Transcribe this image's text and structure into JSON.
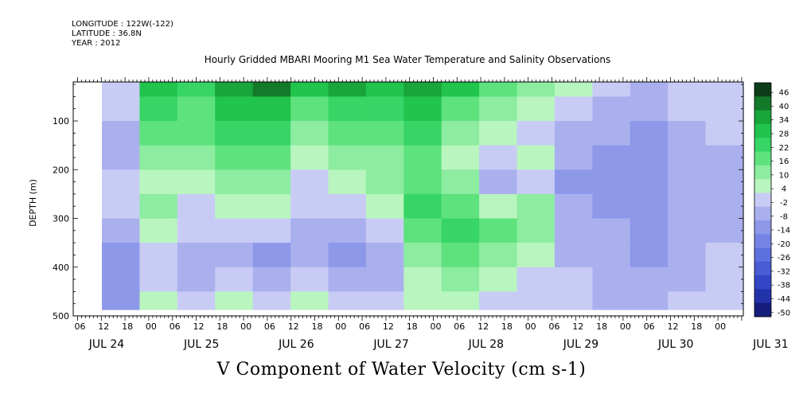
{
  "header": {
    "longitude": "LONGITUDE : 122W(-122)",
    "latitude": "LATITUDE : 36.8N",
    "year": "YEAR : 2012"
  },
  "chart_data": {
    "type": "heatmap",
    "title": "Hourly Gridded MBARI Mooring M1 Sea Water Temperature and Salinity Observations",
    "ylabel": "DEPTH (m)",
    "variable_label": "V Component of Water Velocity (cm s-1)",
    "y_range": [
      500,
      20
    ],
    "y_ticks": [
      100,
      200,
      300,
      400,
      500
    ],
    "hour_tick_labels": [
      "06",
      "12",
      "18",
      "00",
      "06",
      "12",
      "18",
      "00",
      "06",
      "12",
      "18",
      "00",
      "06",
      "12",
      "18",
      "00",
      "06",
      "12",
      "18",
      "00",
      "06",
      "12",
      "18",
      "00",
      "06",
      "12",
      "18",
      "00",
      "06",
      "12",
      "18",
      "00"
    ],
    "date_labels": [
      "JUL 24",
      "JUL 25",
      "JUL 26",
      "JUL 27",
      "JUL 28",
      "JUL 29",
      "JUL 30",
      "JUL 31"
    ],
    "color_levels": [
      46,
      40,
      34,
      28,
      22,
      16,
      10,
      4,
      -2,
      -8,
      -14,
      -20,
      -26,
      -32,
      -38,
      -44,
      -50
    ],
    "colorbar_colors": [
      "#0c3d18",
      "#137a2a",
      "#18a53a",
      "#21c44c",
      "#37d565",
      "#5de27e",
      "#8cec9f",
      "#b9f5bf",
      "#c8ccf5",
      "#aab0ee",
      "#8e98e9",
      "#7584e4",
      "#5d70de",
      "#4a5bd4",
      "#3445c6",
      "#2233aa",
      "#141e7a"
    ],
    "depth_levels": [
      25,
      75,
      125,
      175,
      225,
      275,
      325,
      375,
      425,
      475
    ],
    "time_columns": [
      "Jul 23 12h",
      "Jul 24 00h",
      "Jul 24 12h",
      "Jul 25 00h",
      "Jul 25 12h",
      "Jul 26 00h",
      "Jul 26 12h",
      "Jul 27 00h",
      "Jul 27 12h",
      "Jul 28 00h",
      "Jul 28 12h",
      "Jul 29 00h",
      "Jul 29 12h",
      "Jul 30 00h",
      "Jul 30 12h",
      "Jul 31 00h",
      "Jul 31 12h"
    ],
    "values_by_depth": [
      [
        -8,
        22,
        16,
        28,
        34,
        22,
        28,
        22,
        28,
        22,
        10,
        4,
        -2,
        -8,
        -14,
        -8,
        -8
      ],
      [
        -8,
        16,
        10,
        22,
        22,
        10,
        16,
        16,
        22,
        10,
        4,
        -2,
        -8,
        -14,
        -14,
        -8,
        -8
      ],
      [
        -14,
        10,
        10,
        16,
        16,
        4,
        10,
        10,
        16,
        4,
        -2,
        -8,
        -14,
        -14,
        -20,
        -14,
        -8
      ],
      [
        -14,
        4,
        4,
        10,
        10,
        -2,
        4,
        4,
        10,
        -2,
        -8,
        -2,
        -14,
        -20,
        -20,
        -14,
        -14
      ],
      [
        -8,
        -2,
        -2,
        4,
        4,
        -8,
        -2,
        4,
        10,
        4,
        -14,
        -8,
        -20,
        -20,
        -20,
        -14,
        -14
      ],
      [
        -8,
        4,
        -8,
        -2,
        -2,
        -8,
        -8,
        -2,
        16,
        10,
        -2,
        4,
        -14,
        -20,
        -20,
        -14,
        -14
      ],
      [
        -14,
        -2,
        -8,
        -8,
        -8,
        -14,
        -14,
        -8,
        10,
        16,
        10,
        4,
        -14,
        -14,
        -20,
        -14,
        -14
      ],
      [
        -20,
        -8,
        -14,
        -14,
        -20,
        -14,
        -20,
        -14,
        4,
        10,
        4,
        -2,
        -14,
        -14,
        -20,
        -14,
        -8
      ],
      [
        -20,
        -8,
        -14,
        -8,
        -14,
        -8,
        -14,
        -14,
        -2,
        4,
        -2,
        -8,
        -8,
        -14,
        -14,
        -14,
        -8
      ],
      [
        -20,
        -2,
        -8,
        -2,
        -8,
        -2,
        -8,
        -8,
        -2,
        -2,
        -8,
        -8,
        -8,
        -14,
        -14,
        -8,
        -8
      ]
    ]
  }
}
